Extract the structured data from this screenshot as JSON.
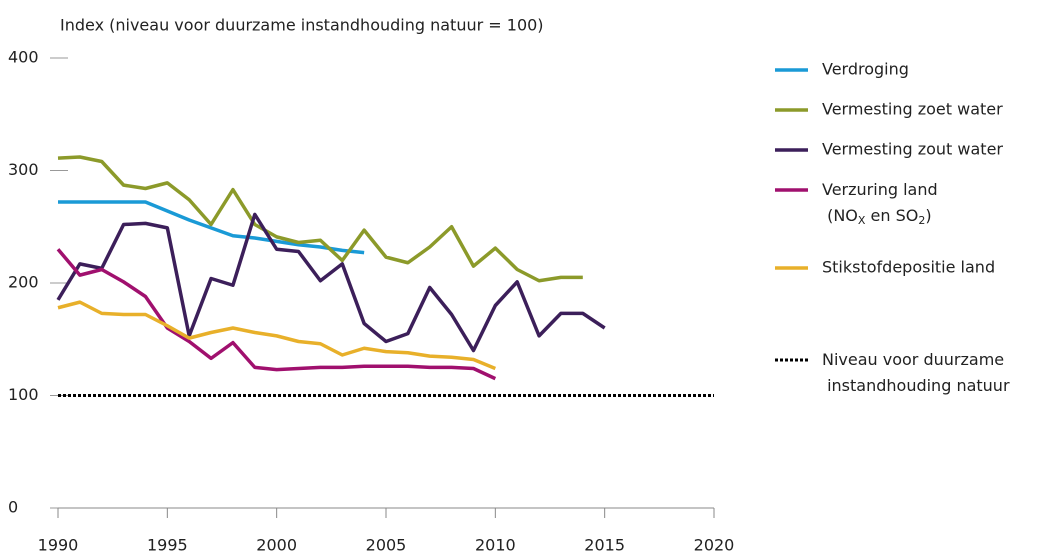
{
  "chart_data": {
    "type": "line",
    "y_label": "Index (niveau voor duurzame instandhouding natuur = 100)",
    "x": [
      1990,
      1991,
      1992,
      1993,
      1994,
      1995,
      1996,
      1997,
      1998,
      1999,
      2000,
      2001,
      2002,
      2003,
      2004,
      2005,
      2006,
      2007,
      2008,
      2009,
      2010,
      2011,
      2012,
      2013,
      2014,
      2015
    ],
    "series": [
      {
        "name": "Verdroging",
        "color": "#1a9ad6",
        "values": [
          272,
          272,
          272,
          272,
          272,
          264,
          256,
          249,
          242,
          240,
          237,
          234,
          232,
          229,
          227,
          null,
          null,
          null,
          null,
          null,
          null,
          null,
          null,
          null,
          null,
          null
        ]
      },
      {
        "name": "Vermesting zoet water",
        "color": "#8c9a2a",
        "values": [
          311,
          312,
          308,
          287,
          284,
          289,
          274,
          252,
          283,
          252,
          241,
          236,
          238,
          220,
          247,
          223,
          218,
          232,
          250,
          215,
          231,
          212,
          202,
          205,
          205,
          null
        ]
      },
      {
        "name": "Vermesting zout water",
        "color": "#3c1f5a",
        "values": [
          185,
          217,
          213,
          252,
          253,
          249,
          153,
          204,
          198,
          261,
          230,
          228,
          202,
          217,
          164,
          148,
          155,
          196,
          172,
          140,
          180,
          201,
          153,
          173,
          173,
          160
        ]
      },
      {
        "name": "Verzuring land (NOX en SO2)",
        "color": "#a0106e",
        "values": [
          230,
          207,
          212,
          201,
          188,
          160,
          148,
          133,
          147,
          125,
          123,
          124,
          125,
          125,
          126,
          126,
          126,
          125,
          125,
          124,
          115,
          null,
          null,
          null,
          null,
          null
        ]
      },
      {
        "name": "Stikstofdepositie land",
        "color": "#e8b02a",
        "values": [
          178,
          183,
          173,
          172,
          172,
          162,
          151,
          156,
          160,
          156,
          153,
          148,
          146,
          136,
          142,
          139,
          138,
          135,
          134,
          132,
          124,
          null,
          null,
          null,
          null,
          null
        ]
      }
    ],
    "reference": {
      "value": 100,
      "label": "Niveau voor duurzame instandhouding natuur",
      "color": "#000000"
    },
    "xlim": [
      1990,
      2020
    ],
    "xticks": [
      1990,
      1995,
      2000,
      2005,
      2010,
      2015,
      2020
    ],
    "ylim": [
      0,
      400
    ],
    "yticks": [
      0,
      100,
      200,
      300,
      400
    ]
  }
}
